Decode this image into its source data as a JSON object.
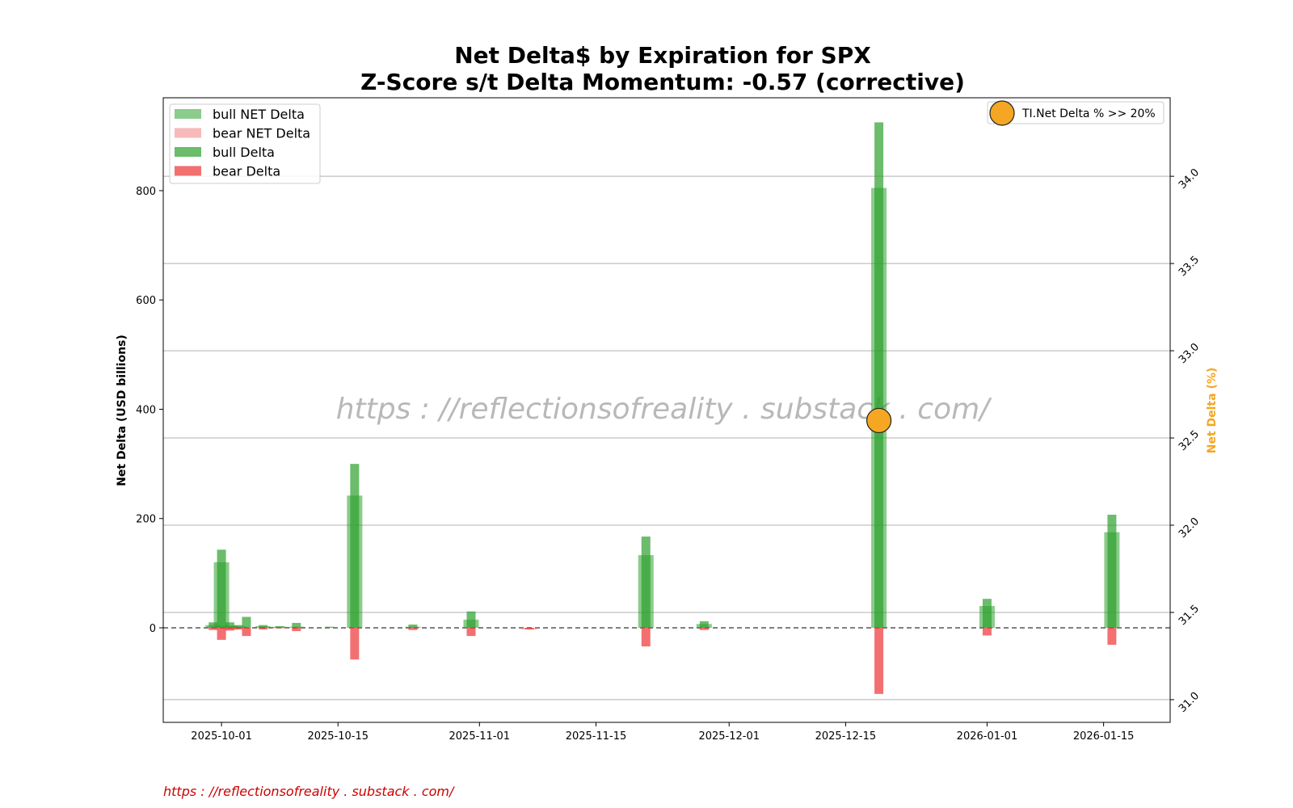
{
  "chart_data": {
    "type": "bar",
    "title": "Net Delta$ by Expiration for SPX",
    "subtitle": "Z-Score s/t Delta Momentum: -0.57 (corrective)",
    "ylabel": "Net Delta (USD billions)",
    "y2label": "Net Delta (%)",
    "ylim": [
      -173,
      970
    ],
    "y2lim": [
      30.87,
      34.45
    ],
    "yticks": [
      0,
      200,
      400,
      600,
      800
    ],
    "y2ticks": [
      31.0,
      31.5,
      32.0,
      32.5,
      33.0,
      33.5,
      34.0
    ],
    "xlim": [
      "2025-09-24",
      "2026-01-23"
    ],
    "xticks": [
      "2025-10-01",
      "2025-10-15",
      "2025-11-01",
      "2025-11-15",
      "2025-12-01",
      "2025-12-15",
      "2026-01-01",
      "2026-01-15"
    ],
    "grid": "horizontal, secondary axis",
    "zero_line": true,
    "legend_position": "upper left",
    "series": [
      {
        "name": "bull NET Delta",
        "color": "#2ca02c",
        "values": [
          {
            "date": "2025-09-30",
            "value": 5
          },
          {
            "date": "2025-10-01",
            "value": 120
          },
          {
            "date": "2025-10-02",
            "value": 4
          },
          {
            "date": "2025-10-03",
            "value": 3
          },
          {
            "date": "2025-10-06",
            "value": 3
          },
          {
            "date": "2025-10-08",
            "value": 2
          },
          {
            "date": "2025-10-10",
            "value": 2
          },
          {
            "date": "2025-10-17",
            "value": 242
          },
          {
            "date": "2025-10-24",
            "value": 2
          },
          {
            "date": "2025-10-31",
            "value": 15
          },
          {
            "date": "2025-11-21",
            "value": 133
          },
          {
            "date": "2025-11-28",
            "value": 7
          },
          {
            "date": "2025-12-19",
            "value": 805
          },
          {
            "date": "2026-01-01",
            "value": 40
          },
          {
            "date": "2026-01-16",
            "value": 175
          }
        ]
      },
      {
        "name": "bear NET Delta",
        "color": "#f08080",
        "values": [
          {
            "date": "2025-10-02",
            "value": -3
          },
          {
            "date": "2025-10-08",
            "value": -1
          },
          {
            "date": "2025-11-07",
            "value": -3
          }
        ]
      },
      {
        "name": "bull Delta",
        "color": "#2ca02c",
        "values": [
          {
            "date": "2025-09-30",
            "value": 10
          },
          {
            "date": "2025-10-01",
            "value": 143
          },
          {
            "date": "2025-10-02",
            "value": 10
          },
          {
            "date": "2025-10-03",
            "value": 5
          },
          {
            "date": "2025-10-04",
            "value": 20
          },
          {
            "date": "2025-10-06",
            "value": 5
          },
          {
            "date": "2025-10-08",
            "value": 3
          },
          {
            "date": "2025-10-10",
            "value": 9
          },
          {
            "date": "2025-10-14",
            "value": 2
          },
          {
            "date": "2025-10-17",
            "value": 300
          },
          {
            "date": "2025-10-24",
            "value": 6
          },
          {
            "date": "2025-10-31",
            "value": 30
          },
          {
            "date": "2025-11-21",
            "value": 167
          },
          {
            "date": "2025-11-28",
            "value": 12
          },
          {
            "date": "2025-12-19",
            "value": 925
          },
          {
            "date": "2026-01-01",
            "value": 53
          },
          {
            "date": "2026-01-16",
            "value": 207
          }
        ]
      },
      {
        "name": "bear Delta",
        "color": "#ee3333",
        "values": [
          {
            "date": "2025-09-30",
            "value": -4
          },
          {
            "date": "2025-10-01",
            "value": -22
          },
          {
            "date": "2025-10-02",
            "value": -5
          },
          {
            "date": "2025-10-03",
            "value": -3
          },
          {
            "date": "2025-10-04",
            "value": -15
          },
          {
            "date": "2025-10-06",
            "value": -3
          },
          {
            "date": "2025-10-10",
            "value": -6
          },
          {
            "date": "2025-10-17",
            "value": -58
          },
          {
            "date": "2025-10-24",
            "value": -4
          },
          {
            "date": "2025-10-31",
            "value": -15
          },
          {
            "date": "2025-11-07",
            "value": -3
          },
          {
            "date": "2025-11-21",
            "value": -34
          },
          {
            "date": "2025-11-28",
            "value": -4
          },
          {
            "date": "2025-12-19",
            "value": -121
          },
          {
            "date": "2026-01-01",
            "value": -14
          },
          {
            "date": "2026-01-16",
            "value": -31
          }
        ]
      }
    ],
    "markers": [
      {
        "name": "TI.Net Delta % >> 20%",
        "date": "2025-12-19",
        "y2": 32.6,
        "color": "#f5a623"
      }
    ]
  },
  "watermark": "https : //reflectionsofreality . substack . com/",
  "footer_link": "https : //reflectionsofreality . substack . com/",
  "colors": {
    "secondary_axis_label": "#f5a623",
    "watermark": "#b8b8b8",
    "footer_link": "#cc0000"
  }
}
